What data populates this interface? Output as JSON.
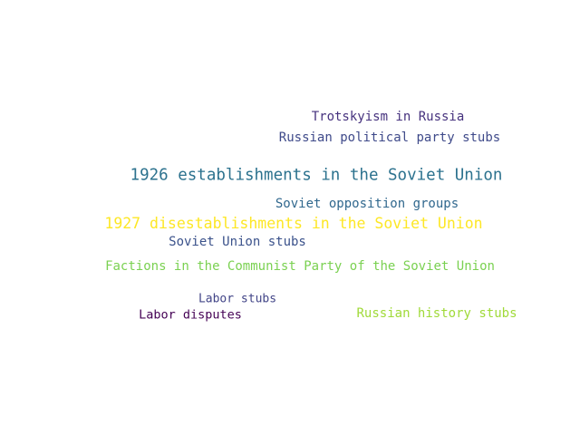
{
  "words": [
    {
      "text": "Trotskyism in Russia",
      "color": "#46327e"
    },
    {
      "text": "Russian political party stubs",
      "color": "#3f4a8a"
    },
    {
      "text": "1926 establishments in the Soviet Union",
      "color": "#2c728e"
    },
    {
      "text": "Soviet opposition groups",
      "color": "#31688e"
    },
    {
      "text": "1927 disestablishments in the Soviet Union",
      "color": "#fde725"
    },
    {
      "text": "Soviet Union stubs",
      "color": "#3b528b"
    },
    {
      "text": "Factions in the Communist Party of the Soviet Union",
      "color": "#7ad151"
    },
    {
      "text": "Labor stubs",
      "color": "#414487"
    },
    {
      "text": "Labor disputes",
      "color": "#440154"
    },
    {
      "text": "Russian history stubs",
      "color": "#a0da39"
    }
  ]
}
